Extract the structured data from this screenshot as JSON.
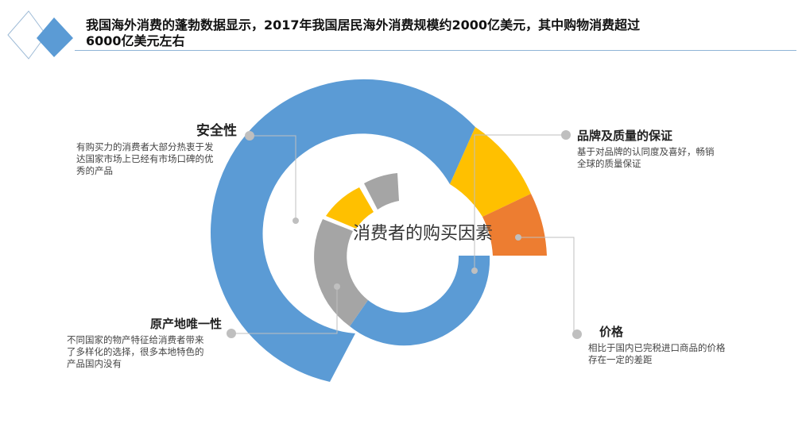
{
  "title": "我国海外消费的蓬勃数据显示，2017年我国居民海外消费规模约2000亿美元，其中购物消费超过6000亿美元左右",
  "center_label": "消费者的购买因素",
  "colors": {
    "blue": "#5b9bd5",
    "gray": "#a5a5a5",
    "yellow": "#ffc000",
    "orange": "#ed7d31",
    "connector": "#bfbfbf",
    "rule": "#8fb4d6"
  },
  "factors": {
    "safety": {
      "title": "安全性",
      "desc_lines": [
        "有购买力的消费者大部分热衷于发",
        "达国家市场上已经有市场口碑的优",
        "秀的产品"
      ]
    },
    "brand": {
      "title": "品牌及质量的保证",
      "desc_lines": [
        "基于对品牌的认同度及喜好，畅销",
        "全球的质量保证"
      ]
    },
    "origin": {
      "title": "原产地唯一性",
      "desc_lines": [
        "不同国家的物产特征给消费者带来",
        "了多样化的选择，很多本地特色的",
        "产品国内没有"
      ]
    },
    "price": {
      "title": "价格",
      "desc_lines": [
        "相比于国内已完税进口商品的价格",
        "存在一定的差距"
      ]
    }
  }
}
